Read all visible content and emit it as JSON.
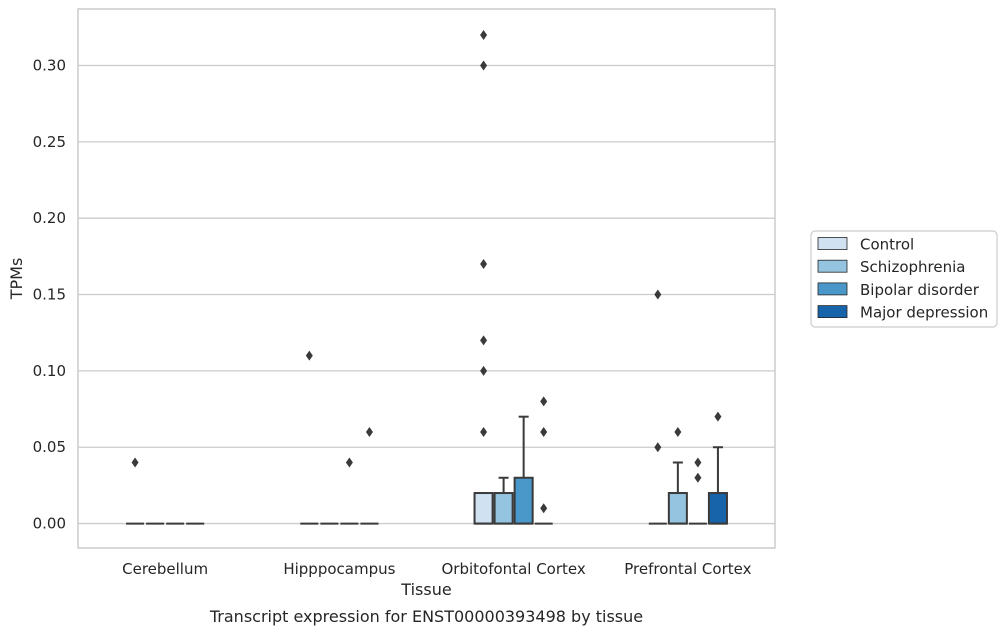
{
  "chart_data": {
    "type": "box",
    "title": "",
    "caption": "Transcript expression for ENST00000393498 by tissue",
    "xlabel": "Tissue",
    "ylabel": "TPMs",
    "ylim": [
      -0.016,
      0.337
    ],
    "yticks": [
      "0.00",
      "0.05",
      "0.10",
      "0.15",
      "0.20",
      "0.25",
      "0.30"
    ],
    "grid": "horizontal",
    "legend_position": "right",
    "categories": [
      "Cerebellum",
      "Hipppocampus",
      "Orbitofontal Cortex",
      "Prefrontal Cortex"
    ],
    "series": [
      {
        "name": "Control",
        "color": "#d0e1f2",
        "boxes": [
          {
            "q1": 0,
            "median": 0,
            "q3": 0,
            "whislo": 0,
            "whishi": 0,
            "fliers": [
              0.04
            ]
          },
          {
            "q1": 0,
            "median": 0,
            "q3": 0,
            "whislo": 0,
            "whishi": 0,
            "fliers": [
              0.11
            ]
          },
          {
            "q1": 0,
            "median": 0,
            "q3": 0.02,
            "whislo": 0,
            "whishi": 0.02,
            "fliers": [
              0.06,
              0.1,
              0.12,
              0.17,
              0.3,
              0.32
            ]
          },
          {
            "q1": 0,
            "median": 0,
            "q3": 0,
            "whislo": 0,
            "whishi": 0,
            "fliers": [
              0.05,
              0.15
            ]
          }
        ]
      },
      {
        "name": "Schizophrenia",
        "color": "#94c4df",
        "boxes": [
          {
            "q1": 0,
            "median": 0,
            "q3": 0,
            "whislo": 0,
            "whishi": 0,
            "fliers": []
          },
          {
            "q1": 0,
            "median": 0,
            "q3": 0,
            "whislo": 0,
            "whishi": 0,
            "fliers": []
          },
          {
            "q1": 0,
            "median": 0,
            "q3": 0.02,
            "whislo": 0,
            "whishi": 0.03,
            "fliers": []
          },
          {
            "q1": 0,
            "median": 0,
            "q3": 0.02,
            "whislo": 0,
            "whishi": 0.04,
            "fliers": [
              0.06
            ]
          }
        ]
      },
      {
        "name": "Bipolar disorder",
        "color": "#4a98c9",
        "boxes": [
          {
            "q1": 0,
            "median": 0,
            "q3": 0,
            "whislo": 0,
            "whishi": 0,
            "fliers": []
          },
          {
            "q1": 0,
            "median": 0,
            "q3": 0,
            "whislo": 0,
            "whishi": 0,
            "fliers": [
              0.04
            ]
          },
          {
            "q1": 0,
            "median": 0,
            "q3": 0.03,
            "whislo": 0,
            "whishi": 0.07,
            "fliers": []
          },
          {
            "q1": 0,
            "median": 0,
            "q3": 0,
            "whislo": 0,
            "whishi": 0,
            "fliers": [
              0.03,
              0.04
            ]
          }
        ]
      },
      {
        "name": "Major depression",
        "color": "#1764ab",
        "boxes": [
          {
            "q1": 0,
            "median": 0,
            "q3": 0,
            "whislo": 0,
            "whishi": 0,
            "fliers": []
          },
          {
            "q1": 0,
            "median": 0,
            "q3": 0,
            "whislo": 0,
            "whishi": 0,
            "fliers": [
              0.06
            ]
          },
          {
            "q1": 0,
            "median": 0,
            "q3": 0,
            "whislo": 0,
            "whishi": 0,
            "fliers": [
              0.01,
              0.06,
              0.08
            ]
          },
          {
            "q1": 0,
            "median": 0,
            "q3": 0.02,
            "whislo": 0,
            "whishi": 0.05,
            "fliers": [
              0.07
            ]
          }
        ]
      }
    ]
  }
}
